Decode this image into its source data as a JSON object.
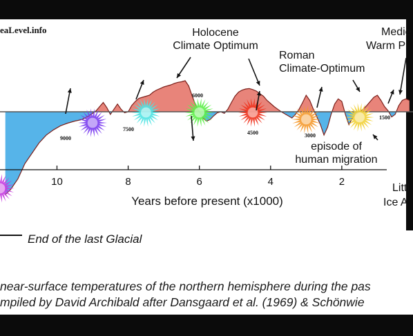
{
  "watermark": "eaLevel.info",
  "caption": {
    "line1": "near-surface temperatures of the northern hemisphere during the pas",
    "line2": "mpiled by David Archibald after Dansgaard et al. (1969) & Schönwie"
  },
  "colors": {
    "warm": "#e8847a",
    "cold": "#56b4e9",
    "line": "#7a1f1a",
    "baseline": "#555555"
  },
  "chart_data": {
    "type": "area",
    "xlabel": "Years before present (x1000)",
    "xlim": [
      11.6,
      0
    ],
    "ylim": [
      -1.6,
      1.0
    ],
    "x_ticks": [
      {
        "value": 10,
        "label": "10"
      },
      {
        "value": 8,
        "label": "8"
      },
      {
        "value": 6,
        "label": "6"
      },
      {
        "value": 4,
        "label": "4"
      },
      {
        "value": 2,
        "label": "2"
      }
    ],
    "series": [
      {
        "x": [
          11.45,
          11.3,
          11.1,
          10.9,
          10.7,
          10.5,
          10.3,
          10.1,
          9.9,
          9.7,
          9.5,
          9.3,
          9.1,
          8.9,
          8.8,
          8.7,
          8.6,
          8.5,
          8.4,
          8.3,
          8.2,
          8.1,
          8.0,
          7.9,
          7.8,
          7.7,
          7.6,
          7.5,
          7.4,
          7.3,
          7.2,
          7.1,
          7.0,
          6.9,
          6.8,
          6.7,
          6.6,
          6.5,
          6.4,
          6.3,
          6.2,
          6.1,
          6.0,
          5.9,
          5.8,
          5.7,
          5.6,
          5.5,
          5.4,
          5.3,
          5.2,
          5.1,
          5.0,
          4.9,
          4.8,
          4.7,
          4.6,
          4.5,
          4.4,
          4.3,
          4.2,
          4.1,
          4.0,
          3.9,
          3.8,
          3.7,
          3.6,
          3.5,
          3.4,
          3.3,
          3.2,
          3.1,
          3.0,
          2.9,
          2.8,
          2.7,
          2.6,
          2.5,
          2.4,
          2.3,
          2.2,
          2.1,
          2.0,
          1.9,
          1.8,
          1.7,
          1.6,
          1.5,
          1.4,
          1.3,
          1.2,
          1.1,
          1.0,
          0.9,
          0.8,
          0.7,
          0.6,
          0.5,
          0.4,
          0.3,
          0.2,
          0.1
        ],
        "y": [
          -1.6,
          -1.5,
          -1.3,
          -1.0,
          -0.8,
          -0.6,
          -0.45,
          -0.35,
          -0.27,
          -0.22,
          -0.18,
          -0.15,
          -0.08,
          0.02,
          0.1,
          0.18,
          0.08,
          -0.05,
          0.05,
          0.15,
          0.05,
          -0.02,
          0.0,
          0.12,
          0.2,
          0.26,
          0.28,
          0.3,
          0.32,
          0.38,
          0.42,
          0.45,
          0.48,
          0.5,
          0.52,
          0.55,
          0.57,
          0.58,
          0.6,
          0.5,
          0.3,
          0.12,
          0.0,
          -0.12,
          -0.18,
          -0.15,
          -0.08,
          -0.02,
          0.0,
          -0.03,
          0.05,
          0.18,
          0.3,
          0.38,
          0.42,
          0.44,
          0.45,
          0.43,
          0.4,
          0.35,
          0.3,
          0.22,
          0.16,
          0.1,
          0.05,
          0.0,
          -0.04,
          -0.08,
          -0.12,
          -0.05,
          0.05,
          0.18,
          0.32,
          0.22,
          0.05,
          -0.1,
          -0.25,
          -0.45,
          -0.3,
          -0.05,
          0.15,
          0.25,
          0.2,
          -0.05,
          -0.25,
          -0.12,
          -0.05,
          0.0,
          0.05,
          0.12,
          0.2,
          0.28,
          0.32,
          0.22,
          0.1,
          0.02,
          -0.1,
          -0.05,
          0.12,
          0.22,
          0.25,
          0.22
        ]
      }
    ],
    "annotations": [
      {
        "text_lines": [
          "Holocene",
          "Climate Optimum"
        ]
      },
      {
        "text_lines": [
          "Roman",
          "Climate-Optimum"
        ]
      },
      {
        "text_lines": [
          "Medie",
          "Warm P"
        ]
      },
      {
        "text_lines": [
          "episode of",
          "human migration"
        ]
      },
      {
        "text_lines": [
          "Littl",
          "Ice A"
        ]
      }
    ],
    "legend": [
      {
        "label": "End of the last Glacial",
        "style": "line"
      }
    ],
    "markers": [
      {
        "year_label": "9000",
        "color": "#7a3cf0",
        "x": 9.0,
        "arrow": "up"
      },
      {
        "year_label": "7500",
        "color": "#4fe3e3",
        "x": 7.5,
        "arrow": "up"
      },
      {
        "year_label": "6000",
        "color": "#5ef04a",
        "x": 6.0,
        "arrow": "down"
      },
      {
        "year_label": "4500",
        "color": "#f0341f",
        "x": 4.5,
        "arrow": "up"
      },
      {
        "year_label": "3000",
        "color": "#f59a2f",
        "x": 3.0,
        "arrow": "up"
      },
      {
        "year_label": "1500",
        "color": "#f2d23a",
        "x": 1.5,
        "arrow": "up"
      },
      {
        "year_label": "",
        "color": "#c63ce0",
        "x": 11.6,
        "arrow": "none"
      }
    ]
  }
}
